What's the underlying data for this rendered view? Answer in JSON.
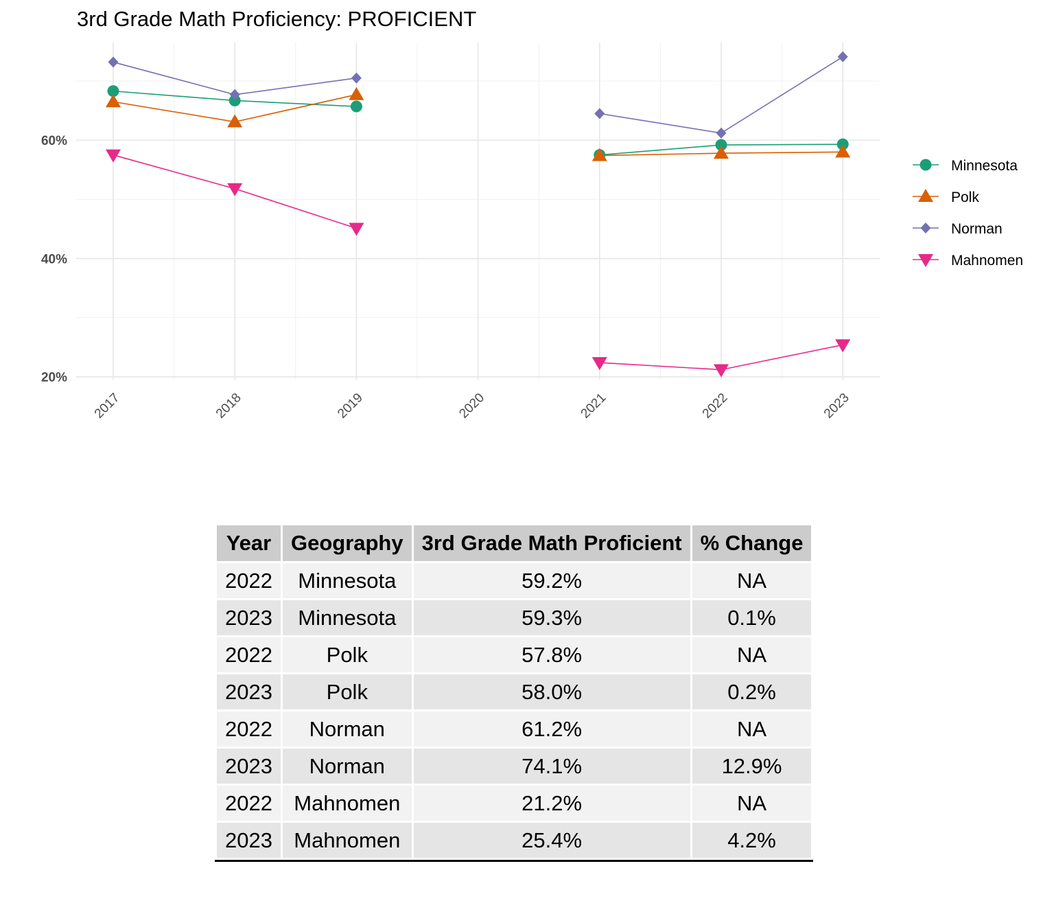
{
  "chart_data": {
    "type": "line",
    "title": "3rd Grade Math Proficiency: PROFICIENT",
    "xlabel": "",
    "ylabel": "",
    "x": [
      "2017",
      "2018",
      "2019",
      "2020",
      "2021",
      "2022",
      "2023"
    ],
    "y_ticks": [
      "20%",
      "40%",
      "60%"
    ],
    "ylim": [
      0.195,
      0.765
    ],
    "grid": true,
    "legend_position": "right",
    "series": [
      {
        "name": "Minnesota",
        "color": "#1b9e77",
        "marker": "circle",
        "values": [
          0.683,
          0.667,
          0.657,
          null,
          0.575,
          0.592,
          0.593
        ]
      },
      {
        "name": "Polk",
        "color": "#d95f02",
        "marker": "triangle-up",
        "values": [
          0.665,
          0.631,
          0.677,
          null,
          0.574,
          0.578,
          0.58
        ]
      },
      {
        "name": "Norman",
        "color": "#7570b3",
        "marker": "diamond",
        "values": [
          0.732,
          0.677,
          0.705,
          null,
          0.645,
          0.612,
          0.741
        ]
      },
      {
        "name": "Mahnomen",
        "color": "#e7298a",
        "marker": "triangle-down",
        "values": [
          0.575,
          0.518,
          0.451,
          null,
          0.224,
          0.212,
          0.254
        ]
      }
    ]
  },
  "table": {
    "headers": [
      "Year",
      "Geography",
      "3rd Grade Math Proficient",
      "% Change"
    ],
    "rows": [
      [
        "2022",
        "Minnesota",
        "59.2%",
        "NA"
      ],
      [
        "2023",
        "Minnesota",
        "59.3%",
        "0.1%"
      ],
      [
        "2022",
        "Polk",
        "57.8%",
        "NA"
      ],
      [
        "2023",
        "Polk",
        "58.0%",
        "0.2%"
      ],
      [
        "2022",
        "Norman",
        "61.2%",
        "NA"
      ],
      [
        "2023",
        "Norman",
        "74.1%",
        "12.9%"
      ],
      [
        "2022",
        "Mahnomen",
        "21.2%",
        "NA"
      ],
      [
        "2023",
        "Mahnomen",
        "25.4%",
        "4.2%"
      ]
    ]
  }
}
